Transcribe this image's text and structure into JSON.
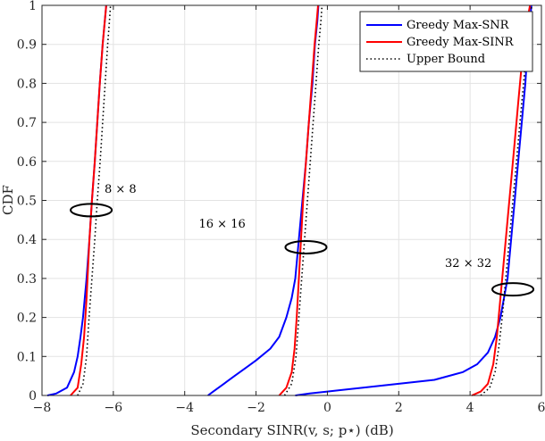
{
  "chart_data": {
    "type": "line",
    "title": "",
    "xlabel": "Secondary SINR(v, s; p⋆) (dB)",
    "ylabel": "CDF",
    "xlim": [
      -8,
      6
    ],
    "ylim": [
      0,
      1
    ],
    "xticks": [
      -8,
      -6,
      -4,
      -2,
      0,
      2,
      4,
      6
    ],
    "yticks": [
      0,
      0.1,
      0.2,
      0.3,
      0.4,
      0.5,
      0.6,
      0.7,
      0.8,
      0.9,
      1
    ],
    "xtick_labels": [
      "−8",
      "−6",
      "−4",
      "−2",
      "0",
      "2",
      "4",
      "6"
    ],
    "ytick_labels": [
      "0",
      "0.1",
      "0.2",
      "0.3",
      "0.4",
      "0.5",
      "0.6",
      "0.7",
      "0.8",
      "0.9",
      "1"
    ],
    "grid": true,
    "legend_position": "top-right",
    "series": [
      {
        "name": "Greedy Max-SNR",
        "color": "#0000ff",
        "style": "solid",
        "groups": [
          [
            [
              -7.85,
              0
            ],
            [
              -7.6,
              0.005
            ],
            [
              -7.3,
              0.02
            ],
            [
              -7.1,
              0.06
            ],
            [
              -7.0,
              0.1
            ],
            [
              -6.92,
              0.15
            ],
            [
              -6.85,
              0.2
            ],
            [
              -6.75,
              0.3
            ],
            [
              -6.67,
              0.4
            ],
            [
              -6.6,
              0.5
            ],
            [
              -6.52,
              0.6
            ],
            [
              -6.45,
              0.7
            ],
            [
              -6.38,
              0.8
            ],
            [
              -6.3,
              0.9
            ],
            [
              -6.24,
              0.96
            ],
            [
              -6.2,
              1.0
            ]
          ],
          [
            [
              -3.35,
              0
            ],
            [
              -3.2,
              0.01
            ],
            [
              -2.9,
              0.03
            ],
            [
              -2.6,
              0.05
            ],
            [
              -2.3,
              0.07
            ],
            [
              -2.0,
              0.09
            ],
            [
              -1.6,
              0.12
            ],
            [
              -1.35,
              0.15
            ],
            [
              -1.15,
              0.2
            ],
            [
              -1.0,
              0.25
            ],
            [
              -0.9,
              0.3
            ],
            [
              -0.8,
              0.4
            ],
            [
              -0.7,
              0.5
            ],
            [
              -0.6,
              0.6
            ],
            [
              -0.52,
              0.7
            ],
            [
              -0.42,
              0.8
            ],
            [
              -0.35,
              0.9
            ],
            [
              -0.28,
              0.96
            ],
            [
              -0.25,
              1.0
            ]
          ],
          [
            [
              -0.9,
              0
            ],
            [
              -0.5,
              0.005
            ],
            [
              0.0,
              0.01
            ],
            [
              1.0,
              0.02
            ],
            [
              2.0,
              0.03
            ],
            [
              3.0,
              0.04
            ],
            [
              3.8,
              0.06
            ],
            [
              4.2,
              0.08
            ],
            [
              4.5,
              0.11
            ],
            [
              4.7,
              0.15
            ],
            [
              4.85,
              0.2
            ],
            [
              4.95,
              0.25
            ],
            [
              5.05,
              0.3
            ],
            [
              5.15,
              0.4
            ],
            [
              5.25,
              0.5
            ],
            [
              5.35,
              0.6
            ],
            [
              5.45,
              0.7
            ],
            [
              5.55,
              0.8
            ],
            [
              5.62,
              0.9
            ],
            [
              5.68,
              0.96
            ],
            [
              5.72,
              1.0
            ]
          ]
        ]
      },
      {
        "name": "Greedy Max-SINR",
        "color": "#ff0000",
        "style": "solid",
        "groups": [
          [
            [
              -7.2,
              0
            ],
            [
              -7.0,
              0.02
            ],
            [
              -6.9,
              0.08
            ],
            [
              -6.82,
              0.15
            ],
            [
              -6.75,
              0.25
            ],
            [
              -6.67,
              0.4
            ],
            [
              -6.6,
              0.5
            ],
            [
              -6.52,
              0.6
            ],
            [
              -6.45,
              0.7
            ],
            [
              -6.38,
              0.8
            ],
            [
              -6.3,
              0.9
            ],
            [
              -6.24,
              0.96
            ],
            [
              -6.2,
              1.0
            ]
          ],
          [
            [
              -1.35,
              0
            ],
            [
              -1.15,
              0.02
            ],
            [
              -1.0,
              0.06
            ],
            [
              -0.92,
              0.12
            ],
            [
              -0.86,
              0.2
            ],
            [
              -0.8,
              0.3
            ],
            [
              -0.74,
              0.4
            ],
            [
              -0.68,
              0.5
            ],
            [
              -0.6,
              0.6
            ],
            [
              -0.52,
              0.7
            ],
            [
              -0.44,
              0.8
            ],
            [
              -0.36,
              0.9
            ],
            [
              -0.3,
              0.96
            ],
            [
              -0.26,
              1.0
            ]
          ],
          [
            [
              4.05,
              0
            ],
            [
              4.3,
              0.01
            ],
            [
              4.5,
              0.03
            ],
            [
              4.65,
              0.08
            ],
            [
              4.75,
              0.15
            ],
            [
              4.85,
              0.25
            ],
            [
              4.95,
              0.35
            ],
            [
              5.05,
              0.45
            ],
            [
              5.15,
              0.55
            ],
            [
              5.25,
              0.65
            ],
            [
              5.35,
              0.75
            ],
            [
              5.45,
              0.85
            ],
            [
              5.55,
              0.93
            ],
            [
              5.62,
              0.97
            ],
            [
              5.68,
              1.0
            ]
          ]
        ]
      },
      {
        "name": "Upper Bound",
        "color": "#000000",
        "style": "dotted",
        "groups": [
          [
            [
              -7.0,
              0
            ],
            [
              -6.85,
              0.03
            ],
            [
              -6.75,
              0.1
            ],
            [
              -6.68,
              0.2
            ],
            [
              -6.6,
              0.3
            ],
            [
              -6.52,
              0.4
            ],
            [
              -6.45,
              0.5
            ],
            [
              -6.37,
              0.6
            ],
            [
              -6.3,
              0.7
            ],
            [
              -6.23,
              0.8
            ],
            [
              -6.16,
              0.9
            ],
            [
              -6.11,
              0.96
            ],
            [
              -6.08,
              1.0
            ]
          ],
          [
            [
              -1.2,
              0
            ],
            [
              -1.0,
              0.03
            ],
            [
              -0.88,
              0.1
            ],
            [
              -0.8,
              0.2
            ],
            [
              -0.72,
              0.3
            ],
            [
              -0.64,
              0.4
            ],
            [
              -0.56,
              0.5
            ],
            [
              -0.48,
              0.6
            ],
            [
              -0.4,
              0.7
            ],
            [
              -0.32,
              0.8
            ],
            [
              -0.24,
              0.9
            ],
            [
              -0.18,
              0.96
            ],
            [
              -0.15,
              1.0
            ]
          ],
          [
            [
              4.3,
              0
            ],
            [
              4.55,
              0.02
            ],
            [
              4.7,
              0.06
            ],
            [
              4.8,
              0.12
            ],
            [
              4.9,
              0.2
            ],
            [
              5.0,
              0.3
            ],
            [
              5.1,
              0.4
            ],
            [
              5.2,
              0.5
            ],
            [
              5.3,
              0.6
            ],
            [
              5.4,
              0.7
            ],
            [
              5.5,
              0.8
            ],
            [
              5.6,
              0.9
            ],
            [
              5.68,
              0.96
            ],
            [
              5.73,
              1.0
            ]
          ]
        ]
      }
    ],
    "annotations": [
      {
        "text": "8 × 8",
        "x": -5.8,
        "y": 0.52,
        "ellipse_center": [
          -6.62,
          0.475
        ]
      },
      {
        "text": "16 × 16",
        "x": -2.95,
        "y": 0.43,
        "ellipse_center": [
          -0.6,
          0.38
        ]
      },
      {
        "text": "32 × 32",
        "x": 3.95,
        "y": 0.33,
        "ellipse_center": [
          5.2,
          0.272
        ]
      }
    ]
  }
}
